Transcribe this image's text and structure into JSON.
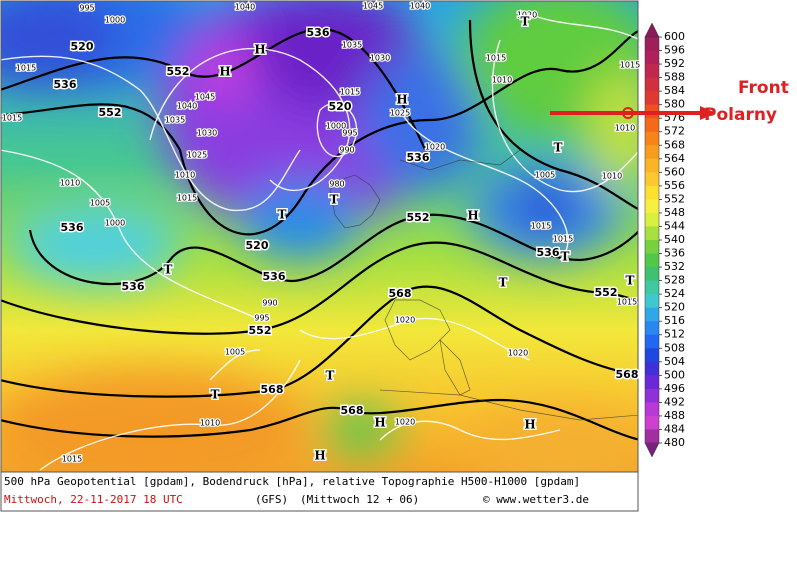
{
  "map": {
    "contour_labels": [
      "520",
      "536",
      "552",
      "552",
      "536",
      "520",
      "536",
      "552",
      "520",
      "536",
      "536",
      "536",
      "552",
      "568",
      "568",
      "568",
      "536",
      "552",
      "568"
    ],
    "centers": [
      "H",
      "H",
      "H",
      "H",
      "H",
      "H",
      "H",
      "T",
      "T",
      "T",
      "T",
      "T",
      "T",
      "T",
      "T",
      "T",
      "T"
    ],
    "pressure_labels": [
      "1015",
      "1010",
      "1005",
      "1000",
      "1010",
      "1015",
      "1025",
      "1030",
      "1035",
      "1040",
      "1045",
      "1035",
      "1030",
      "1025",
      "1020",
      "1015",
      "1000",
      "995",
      "990",
      "1015",
      "1010",
      "1020",
      "1005",
      "1015",
      "1015",
      "1010",
      "1010",
      "1015",
      "1020",
      "1020",
      "1020",
      "1010",
      "1015",
      "1005",
      "990",
      "995",
      "980",
      "1015",
      "1015",
      "1040",
      "1045",
      "1040",
      "995",
      "1000"
    ]
  },
  "colorbar": [
    600,
    596,
    592,
    588,
    584,
    580,
    576,
    572,
    568,
    564,
    560,
    556,
    552,
    548,
    544,
    540,
    536,
    532,
    528,
    524,
    520,
    516,
    512,
    508,
    504,
    500,
    496,
    492,
    488,
    484,
    480
  ],
  "footer": {
    "description": "500 hPa Geopotential [gpdam], Bodendruck [hPa], relative Topographie H500-H1000 [gpdam]",
    "date": "Mittwoch, 22-11-2017  18 UTC",
    "model": "(GFS)",
    "run": "(Mittwoch 12 + 06)",
    "credit": "© www.wetter3.de"
  },
  "annotation": {
    "line1": "Front",
    "line2": "Polarny"
  }
}
